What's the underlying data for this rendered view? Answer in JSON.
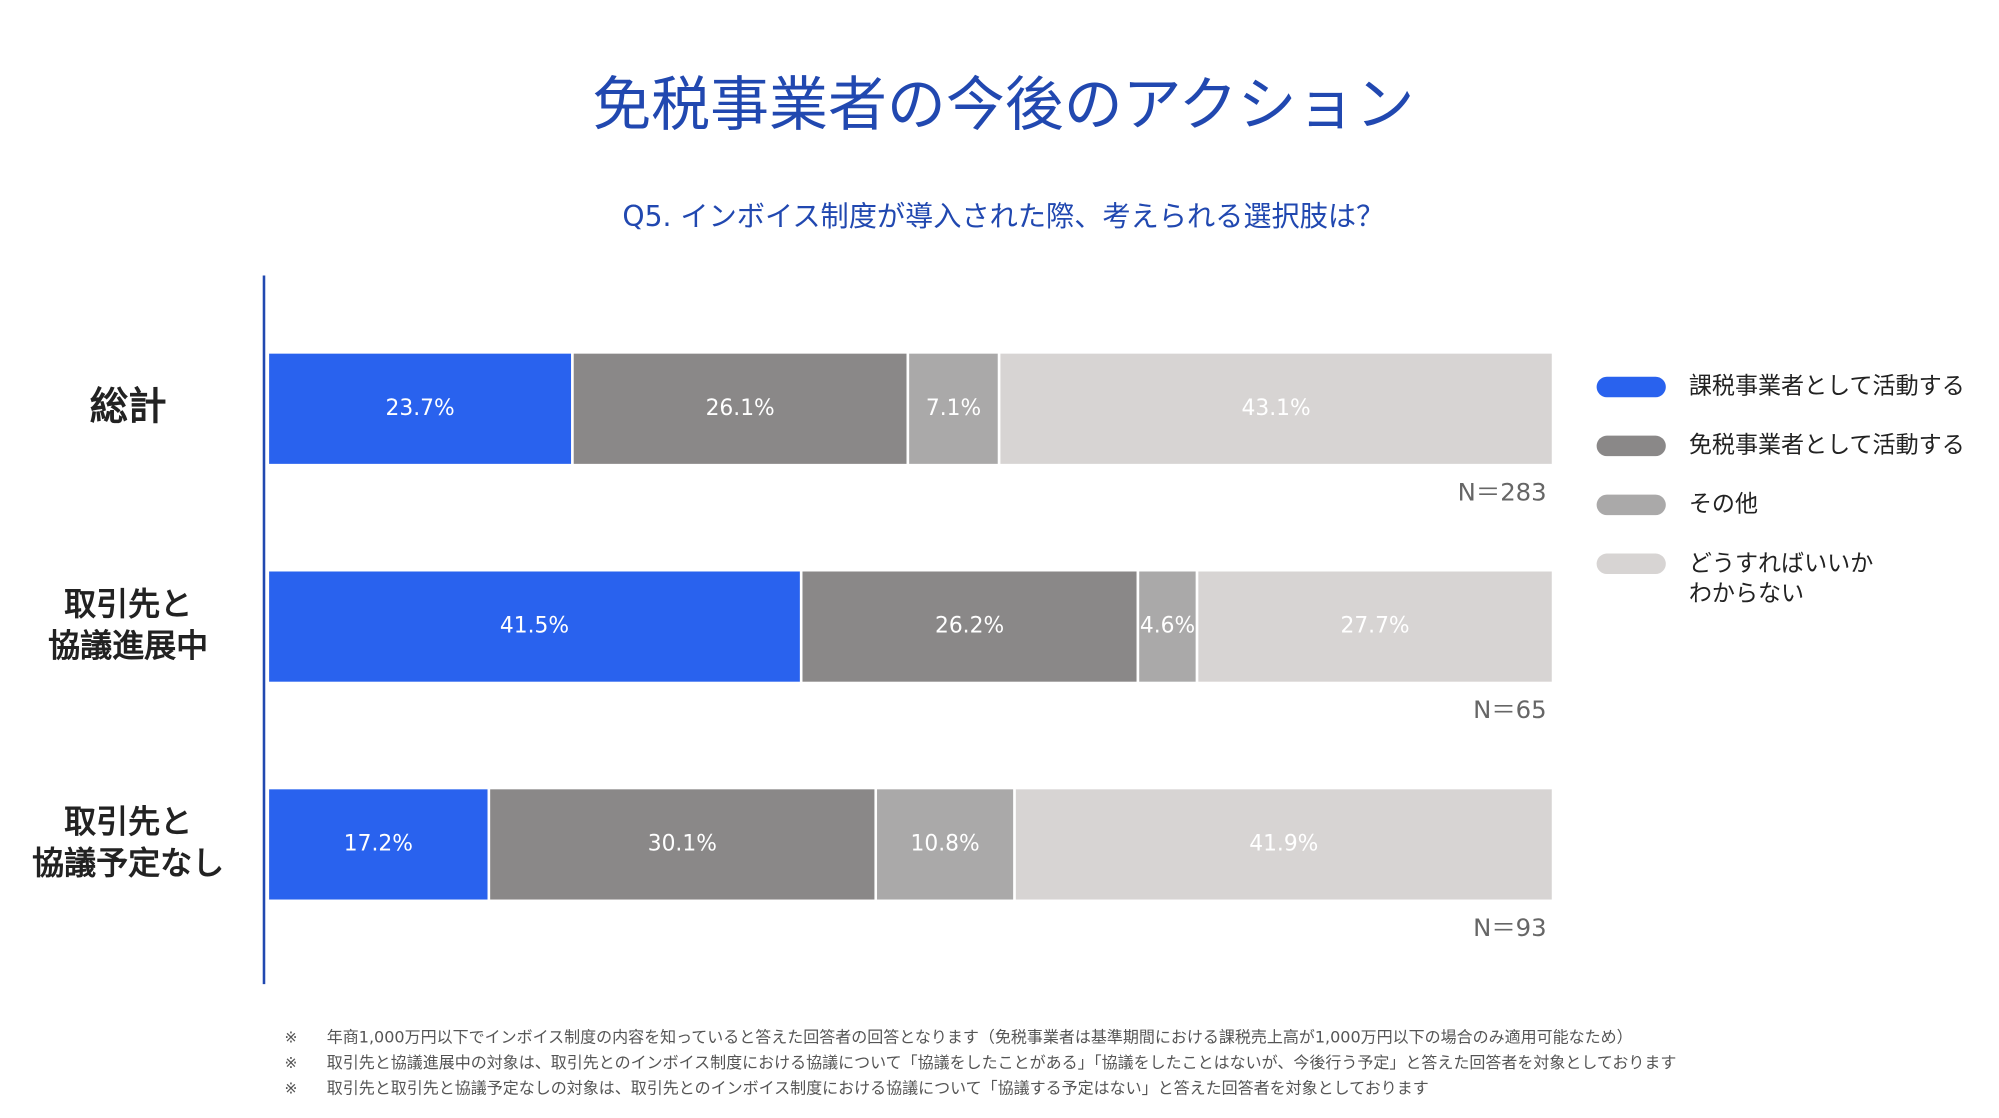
{
  "chart_data": {
    "type": "stacked-bar",
    "title": "免税事業者の今後のアクション",
    "subtitle": "Q5. インボイス制度が導入された際、考えられる選択肢は？",
    "categories": [
      "総計",
      "取引先と\n協議進展中",
      "取引先と\n協議予定なし"
    ],
    "xlim": [
      0,
      100
    ],
    "series": [
      {
        "name": "課税事業者として活動する",
        "color": "#2962ee",
        "label_color": "#ffffff",
        "values": [
          23.7,
          41.5,
          17.2
        ],
        "value_labels": [
          "23.7%",
          "41.5%",
          "17.2%"
        ]
      },
      {
        "name": "免税事業者として活動する",
        "color": "#8a8888",
        "label_color": "#ffffff",
        "values": [
          26.1,
          26.2,
          30.1
        ],
        "value_labels": [
          "26.1%",
          "26.2%",
          "30.1%"
        ]
      },
      {
        "name": "その他",
        "color": "#aaa9a9",
        "label_color": "#ffffff",
        "values": [
          7.1,
          4.6,
          10.8
        ],
        "value_labels": [
          "7.1%",
          "4.6%",
          "10.8%"
        ]
      },
      {
        "name": "どうすればいいか\nわからない",
        "color": "#d7d4d3",
        "label_color": "#ffffff",
        "values": [
          43.1,
          27.7,
          41.9
        ],
        "value_labels": [
          "43.1%",
          "27.7%",
          "41.9%"
        ]
      }
    ],
    "n_labels": [
      "N＝283",
      "N＝65",
      "N＝93"
    ],
    "legend": "right",
    "notes": [
      {
        "mark": "※",
        "text": "年商1,000万円以下でインボイス制度の内容を知っていると答えた回答者の回答となります（免税事業者は基準期間における課税売上高が1,000万円以下の場合のみ適用可能なため）"
      },
      {
        "mark": "※",
        "text": "取引先と協議進展中の対象は、取引先とのインボイス制度における協議について「協議をしたことがある」「協議をしたことはないが、今後行う予定」と答えた回答者を対象としております"
      },
      {
        "mark": "※",
        "text": "取引先と取引先と協議予定なしの対象は、取引先とのインボイス制度における協議について「協議する予定はない」と答えた回答者を対象としております"
      }
    ]
  }
}
